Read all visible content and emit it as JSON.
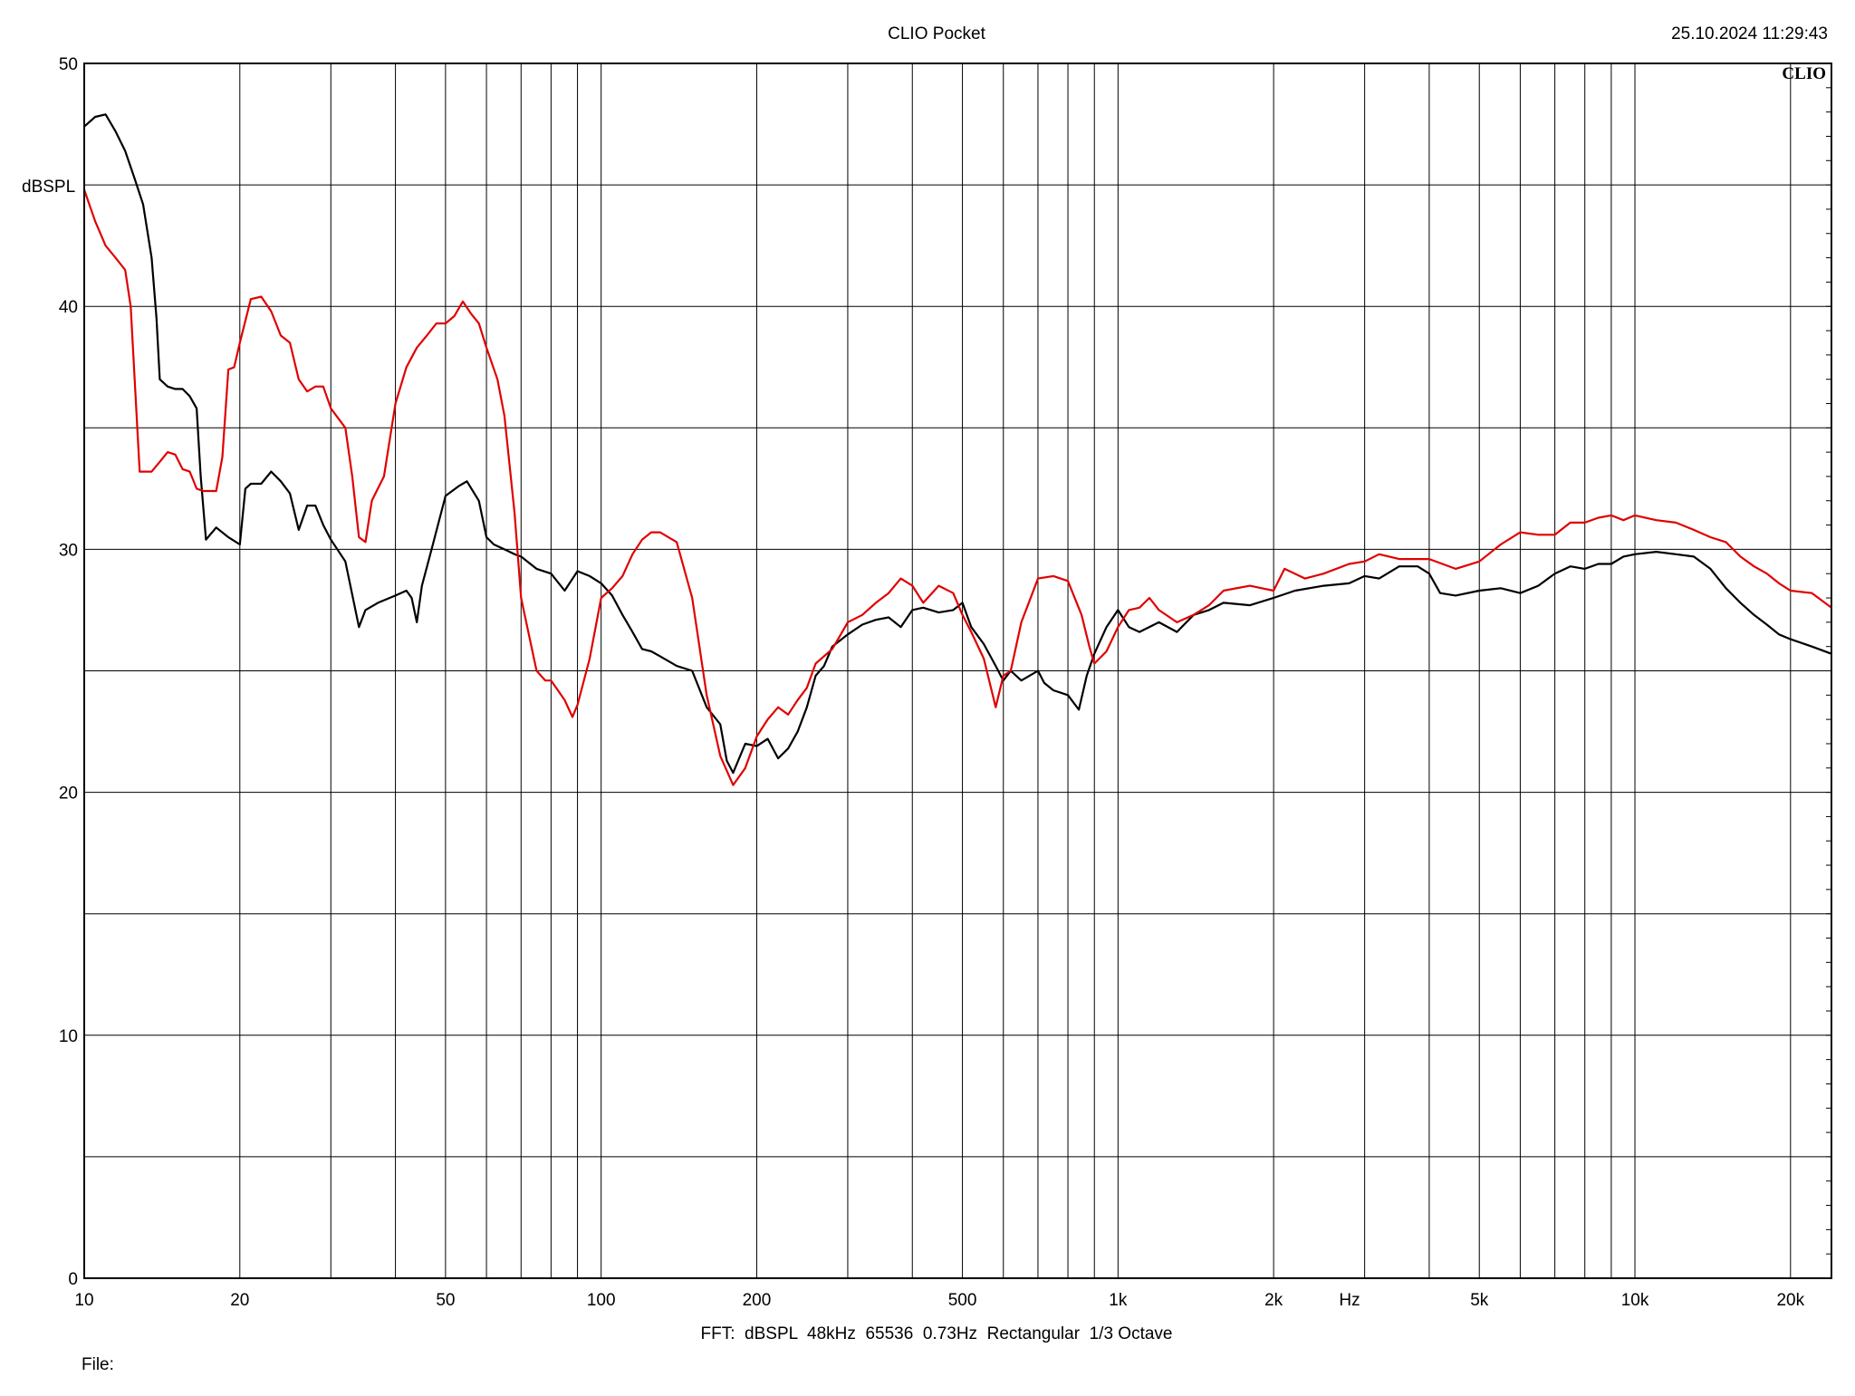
{
  "header": {
    "title": "CLIO Pocket",
    "timestamp": "25.10.2024 11:29:43",
    "logo": "CLIO"
  },
  "footer": {
    "settings": "FFT:  dBSPL  48kHz  65536  0.73Hz  Rectangular  1/3 Octave",
    "file_label": "File:"
  },
  "colors": {
    "grid": "#000000",
    "series_black": "#000000",
    "series_red": "#e00000"
  },
  "chart_data": {
    "type": "line",
    "title": "CLIO Pocket",
    "xlabel": "Hz",
    "ylabel": "dBSPL",
    "x_scale": "log",
    "xlim": [
      10,
      24000
    ],
    "ylim": [
      0,
      50
    ],
    "grid": true,
    "x_tick_labels": [
      {
        "value": 10,
        "label": "10"
      },
      {
        "value": 20,
        "label": "20"
      },
      {
        "value": 50,
        "label": "50"
      },
      {
        "value": 100,
        "label": "100"
      },
      {
        "value": 200,
        "label": "200"
      },
      {
        "value": 500,
        "label": "500"
      },
      {
        "value": 1000,
        "label": "1k"
      },
      {
        "value": 2000,
        "label": "2k"
      },
      {
        "value": 5000,
        "label": "5k"
      },
      {
        "value": 10000,
        "label": "10k"
      },
      {
        "value": 20000,
        "label": "20k"
      }
    ],
    "y_tick_labels": [
      {
        "value": 0,
        "label": "0"
      },
      {
        "value": 10,
        "label": "10"
      },
      {
        "value": 20,
        "label": "20"
      },
      {
        "value": 30,
        "label": "30"
      },
      {
        "value": 40,
        "label": "40"
      },
      {
        "value": 50,
        "label": "50"
      }
    ],
    "series": [
      {
        "color": "#000000",
        "points": [
          [
            10,
            47.4
          ],
          [
            10.5,
            47.8
          ],
          [
            11,
            47.9
          ],
          [
            11.5,
            47.2
          ],
          [
            12,
            46.4
          ],
          [
            12.5,
            45.3
          ],
          [
            13,
            44.2
          ],
          [
            13.5,
            42.0
          ],
          [
            13.8,
            39.5
          ],
          [
            14,
            37.0
          ],
          [
            14.5,
            36.7
          ],
          [
            15,
            36.6
          ],
          [
            15.5,
            36.6
          ],
          [
            16,
            36.3
          ],
          [
            16.5,
            35.8
          ],
          [
            16.8,
            33.0
          ],
          [
            17.2,
            30.4
          ],
          [
            18,
            30.9
          ],
          [
            19,
            30.5
          ],
          [
            20,
            30.2
          ],
          [
            20.5,
            32.5
          ],
          [
            21,
            32.7
          ],
          [
            22,
            32.7
          ],
          [
            23,
            33.2
          ],
          [
            24,
            32.8
          ],
          [
            25,
            32.3
          ],
          [
            26,
            30.8
          ],
          [
            27,
            31.8
          ],
          [
            28,
            31.8
          ],
          [
            29,
            31.0
          ],
          [
            30,
            30.4
          ],
          [
            32,
            29.5
          ],
          [
            34,
            26.8
          ],
          [
            35,
            27.5
          ],
          [
            37,
            27.8
          ],
          [
            40,
            28.1
          ],
          [
            42,
            28.3
          ],
          [
            43,
            28.0
          ],
          [
            44,
            27.0
          ],
          [
            45,
            28.5
          ],
          [
            47,
            30.0
          ],
          [
            50,
            32.2
          ],
          [
            53,
            32.6
          ],
          [
            55,
            32.8
          ],
          [
            58,
            32.0
          ],
          [
            60,
            30.5
          ],
          [
            62,
            30.2
          ],
          [
            65,
            30.0
          ],
          [
            68,
            29.8
          ],
          [
            70,
            29.7
          ],
          [
            75,
            29.2
          ],
          [
            80,
            29.0
          ],
          [
            85,
            28.3
          ],
          [
            90,
            29.1
          ],
          [
            95,
            28.9
          ],
          [
            100,
            28.6
          ],
          [
            105,
            28.1
          ],
          [
            110,
            27.3
          ],
          [
            115,
            26.6
          ],
          [
            120,
            25.9
          ],
          [
            125,
            25.8
          ],
          [
            130,
            25.6
          ],
          [
            140,
            25.2
          ],
          [
            150,
            25.0
          ],
          [
            160,
            23.5
          ],
          [
            170,
            22.8
          ],
          [
            175,
            21.3
          ],
          [
            180,
            20.8
          ],
          [
            190,
            22.0
          ],
          [
            200,
            21.9
          ],
          [
            210,
            22.2
          ],
          [
            220,
            21.4
          ],
          [
            230,
            21.8
          ],
          [
            240,
            22.5
          ],
          [
            250,
            23.5
          ],
          [
            260,
            24.8
          ],
          [
            270,
            25.2
          ],
          [
            280,
            26.0
          ],
          [
            300,
            26.5
          ],
          [
            320,
            26.9
          ],
          [
            340,
            27.1
          ],
          [
            360,
            27.2
          ],
          [
            380,
            26.8
          ],
          [
            400,
            27.5
          ],
          [
            420,
            27.6
          ],
          [
            450,
            27.4
          ],
          [
            480,
            27.5
          ],
          [
            500,
            27.8
          ],
          [
            520,
            26.8
          ],
          [
            550,
            26.1
          ],
          [
            580,
            25.2
          ],
          [
            600,
            24.6
          ],
          [
            620,
            25.0
          ],
          [
            650,
            24.6
          ],
          [
            700,
            25.0
          ],
          [
            720,
            24.5
          ],
          [
            750,
            24.2
          ],
          [
            800,
            24.0
          ],
          [
            840,
            23.4
          ],
          [
            870,
            24.8
          ],
          [
            900,
            25.7
          ],
          [
            950,
            26.8
          ],
          [
            1000,
            27.5
          ],
          [
            1050,
            26.8
          ],
          [
            1100,
            26.6
          ],
          [
            1200,
            27.0
          ],
          [
            1300,
            26.6
          ],
          [
            1400,
            27.3
          ],
          [
            1500,
            27.5
          ],
          [
            1600,
            27.8
          ],
          [
            1800,
            27.7
          ],
          [
            2000,
            28.0
          ],
          [
            2200,
            28.3
          ],
          [
            2500,
            28.5
          ],
          [
            2800,
            28.6
          ],
          [
            3000,
            28.9
          ],
          [
            3200,
            28.8
          ],
          [
            3500,
            29.3
          ],
          [
            3800,
            29.3
          ],
          [
            4000,
            29.0
          ],
          [
            4200,
            28.2
          ],
          [
            4500,
            28.1
          ],
          [
            5000,
            28.3
          ],
          [
            5500,
            28.4
          ],
          [
            6000,
            28.2
          ],
          [
            6500,
            28.5
          ],
          [
            7000,
            29.0
          ],
          [
            7500,
            29.3
          ],
          [
            8000,
            29.2
          ],
          [
            8500,
            29.4
          ],
          [
            9000,
            29.4
          ],
          [
            9500,
            29.7
          ],
          [
            10000,
            29.8
          ],
          [
            11000,
            29.9
          ],
          [
            12000,
            29.8
          ],
          [
            13000,
            29.7
          ],
          [
            14000,
            29.2
          ],
          [
            15000,
            28.4
          ],
          [
            16000,
            27.8
          ],
          [
            17000,
            27.3
          ],
          [
            18000,
            26.9
          ],
          [
            19000,
            26.5
          ],
          [
            20000,
            26.3
          ],
          [
            22000,
            26.0
          ],
          [
            24000,
            25.7
          ]
        ]
      },
      {
        "color": "#e00000",
        "points": [
          [
            10,
            44.8
          ],
          [
            10.5,
            43.5
          ],
          [
            11,
            42.5
          ],
          [
            11.5,
            42.0
          ],
          [
            12,
            41.5
          ],
          [
            12.3,
            40.0
          ],
          [
            12.8,
            33.2
          ],
          [
            13.5,
            33.2
          ],
          [
            14,
            33.6
          ],
          [
            14.5,
            34.0
          ],
          [
            15,
            33.9
          ],
          [
            15.5,
            33.3
          ],
          [
            16,
            33.2
          ],
          [
            16.5,
            32.5
          ],
          [
            17,
            32.4
          ],
          [
            17.5,
            32.4
          ],
          [
            18,
            32.4
          ],
          [
            18.5,
            33.8
          ],
          [
            19,
            37.4
          ],
          [
            19.5,
            37.5
          ],
          [
            20,
            38.5
          ],
          [
            21,
            40.3
          ],
          [
            22,
            40.4
          ],
          [
            23,
            39.8
          ],
          [
            24,
            38.8
          ],
          [
            25,
            38.5
          ],
          [
            26,
            37.0
          ],
          [
            27,
            36.5
          ],
          [
            28,
            36.7
          ],
          [
            29,
            36.7
          ],
          [
            30,
            35.8
          ],
          [
            32,
            35.0
          ],
          [
            33,
            33.0
          ],
          [
            34,
            30.5
          ],
          [
            35,
            30.3
          ],
          [
            36,
            32.0
          ],
          [
            38,
            33.0
          ],
          [
            40,
            36.0
          ],
          [
            42,
            37.5
          ],
          [
            44,
            38.3
          ],
          [
            46,
            38.8
          ],
          [
            48,
            39.3
          ],
          [
            50,
            39.3
          ],
          [
            52,
            39.6
          ],
          [
            54,
            40.2
          ],
          [
            56,
            39.7
          ],
          [
            58,
            39.3
          ],
          [
            60,
            38.3
          ],
          [
            63,
            37.0
          ],
          [
            65,
            35.5
          ],
          [
            68,
            31.5
          ],
          [
            70,
            28.0
          ],
          [
            75,
            25.0
          ],
          [
            78,
            24.6
          ],
          [
            80,
            24.6
          ],
          [
            85,
            23.8
          ],
          [
            88,
            23.1
          ],
          [
            90,
            23.6
          ],
          [
            95,
            25.5
          ],
          [
            100,
            28.0
          ],
          [
            105,
            28.4
          ],
          [
            110,
            28.9
          ],
          [
            115,
            29.8
          ],
          [
            120,
            30.4
          ],
          [
            125,
            30.7
          ],
          [
            130,
            30.7
          ],
          [
            140,
            30.3
          ],
          [
            150,
            28.0
          ],
          [
            160,
            24.0
          ],
          [
            170,
            21.5
          ],
          [
            180,
            20.3
          ],
          [
            190,
            21.0
          ],
          [
            200,
            22.3
          ],
          [
            210,
            23.0
          ],
          [
            220,
            23.5
          ],
          [
            230,
            23.2
          ],
          [
            240,
            23.8
          ],
          [
            250,
            24.3
          ],
          [
            260,
            25.3
          ],
          [
            280,
            25.9
          ],
          [
            300,
            27.0
          ],
          [
            320,
            27.3
          ],
          [
            340,
            27.8
          ],
          [
            360,
            28.2
          ],
          [
            380,
            28.8
          ],
          [
            400,
            28.5
          ],
          [
            420,
            27.8
          ],
          [
            450,
            28.5
          ],
          [
            480,
            28.2
          ],
          [
            500,
            27.3
          ],
          [
            520,
            26.6
          ],
          [
            550,
            25.5
          ],
          [
            580,
            23.5
          ],
          [
            600,
            24.8
          ],
          [
            620,
            25.0
          ],
          [
            650,
            27.0
          ],
          [
            700,
            28.8
          ],
          [
            750,
            28.9
          ],
          [
            800,
            28.7
          ],
          [
            850,
            27.3
          ],
          [
            880,
            26.0
          ],
          [
            900,
            25.3
          ],
          [
            950,
            25.8
          ],
          [
            1000,
            26.8
          ],
          [
            1050,
            27.5
          ],
          [
            1100,
            27.6
          ],
          [
            1150,
            28.0
          ],
          [
            1200,
            27.5
          ],
          [
            1300,
            27.0
          ],
          [
            1400,
            27.3
          ],
          [
            1500,
            27.7
          ],
          [
            1600,
            28.3
          ],
          [
            1800,
            28.5
          ],
          [
            2000,
            28.3
          ],
          [
            2100,
            29.2
          ],
          [
            2300,
            28.8
          ],
          [
            2500,
            29.0
          ],
          [
            2800,
            29.4
          ],
          [
            3000,
            29.5
          ],
          [
            3200,
            29.8
          ],
          [
            3500,
            29.6
          ],
          [
            3800,
            29.6
          ],
          [
            4000,
            29.6
          ],
          [
            4500,
            29.2
          ],
          [
            5000,
            29.5
          ],
          [
            5500,
            30.2
          ],
          [
            6000,
            30.7
          ],
          [
            6500,
            30.6
          ],
          [
            7000,
            30.6
          ],
          [
            7500,
            31.1
          ],
          [
            8000,
            31.1
          ],
          [
            8500,
            31.3
          ],
          [
            9000,
            31.4
          ],
          [
            9500,
            31.2
          ],
          [
            10000,
            31.4
          ],
          [
            11000,
            31.2
          ],
          [
            12000,
            31.1
          ],
          [
            13000,
            30.8
          ],
          [
            14000,
            30.5
          ],
          [
            15000,
            30.3
          ],
          [
            16000,
            29.7
          ],
          [
            17000,
            29.3
          ],
          [
            18000,
            29.0
          ],
          [
            19000,
            28.6
          ],
          [
            20000,
            28.3
          ],
          [
            22000,
            28.2
          ],
          [
            24000,
            27.6
          ]
        ]
      }
    ]
  }
}
